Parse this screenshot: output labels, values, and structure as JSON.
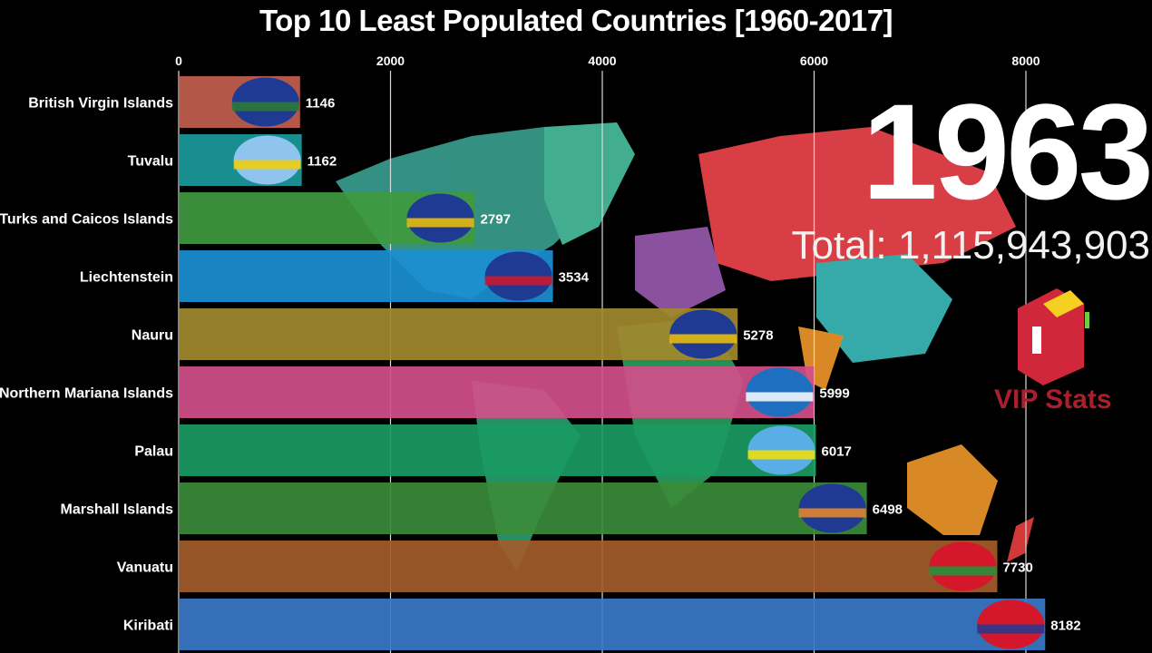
{
  "chart_data": {
    "type": "bar",
    "orientation": "horizontal",
    "title": "Top 10 Least Populated Countries [1960-2017]",
    "year": "1963",
    "total_label": "Total: 1,115,943,903",
    "xlim": [
      0,
      8200
    ],
    "x_ticks": [
      0,
      2000,
      4000,
      6000,
      8000
    ],
    "x_tick_labels": [
      "0",
      "2000",
      "4000",
      "6000",
      "8000"
    ],
    "grid": true,
    "categories": [
      "British Virgin Islands",
      "Tuvalu",
      "Turks and Caicos Islands",
      "Liechtenstein",
      "Nauru",
      "Northern Mariana Islands",
      "Palau",
      "Marshall Islands",
      "Vanuatu",
      "Kiribati"
    ],
    "values": [
      1146,
      1162,
      2797,
      3534,
      5278,
      5999,
      6017,
      6498,
      7730,
      8182
    ],
    "value_labels": [
      "1146",
      "1162",
      "2797",
      "3534",
      "5278",
      "5999",
      "6017",
      "6498",
      "7730",
      "8182"
    ],
    "colors": [
      "#c2604f",
      "#1b9a9c",
      "#3f9a40",
      "#1a8fd2",
      "#a2892e",
      "#d24f8a",
      "#1a9a62",
      "#3b8b3a",
      "#a35c2a",
      "#3a78c8"
    ],
    "flags": [
      {
        "icon": "flag-british-virgin-islands-icon",
        "bg": "#1f3a93",
        "accent": "#2e7d32"
      },
      {
        "icon": "flag-tuvalu-icon",
        "bg": "#8ec4ee",
        "accent": "#f5d000"
      },
      {
        "icon": "flag-turks-and-caicos-icon",
        "bg": "#1f3a93",
        "accent": "#f5c400"
      },
      {
        "icon": "flag-liechtenstein-icon",
        "bg": "#1f3a93",
        "accent": "#d5172b"
      },
      {
        "icon": "flag-nauru-icon",
        "bg": "#1f3a93",
        "accent": "#f5c400"
      },
      {
        "icon": "flag-northern-mariana-islands-icon",
        "bg": "#1f6fc0",
        "accent": "#ffffff"
      },
      {
        "icon": "flag-palau-icon",
        "bg": "#5aaee6",
        "accent": "#f7e000"
      },
      {
        "icon": "flag-marshall-islands-icon",
        "bg": "#1f3a93",
        "accent": "#f08a24"
      },
      {
        "icon": "flag-vanuatu-icon",
        "bg": "#d5172b",
        "accent": "#1a9a3a"
      },
      {
        "icon": "flag-kiribati-icon",
        "bg": "#d5172b",
        "accent": "#1f3a93"
      }
    ]
  },
  "logo": {
    "text": "VIP Stats",
    "color": "#a8202c"
  }
}
